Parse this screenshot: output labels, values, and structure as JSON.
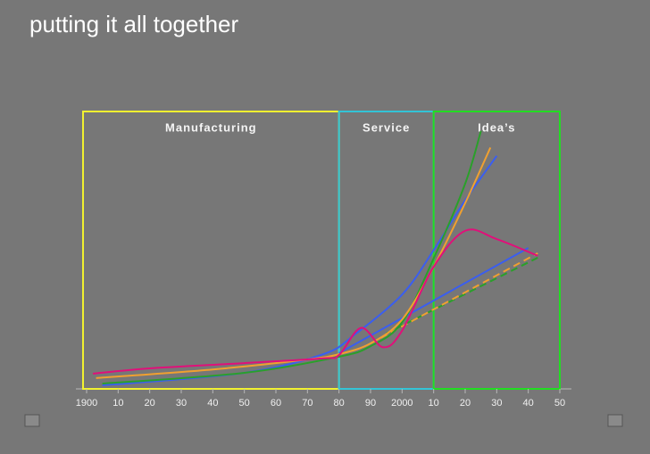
{
  "title": "putting it all together",
  "chart_data": {
    "type": "line",
    "xlim": [
      1900,
      2050
    ],
    "ylim": [
      0,
      100
    ],
    "xticks": [
      1900,
      {
        "value": 1910,
        "label": "10"
      },
      {
        "value": 1920,
        "label": "20"
      },
      {
        "value": 1930,
        "label": "30"
      },
      {
        "value": 1940,
        "label": "40"
      },
      {
        "value": 1950,
        "label": "50"
      },
      {
        "value": 1960,
        "label": "60"
      },
      {
        "value": 1970,
        "label": "70"
      },
      {
        "value": 1980,
        "label": "80"
      },
      {
        "value": 1990,
        "label": "90"
      },
      2000,
      {
        "value": 2010,
        "label": "10"
      },
      {
        "value": 2020,
        "label": "20"
      },
      {
        "value": 2030,
        "label": "30"
      },
      {
        "value": 2040,
        "label": "40"
      },
      {
        "value": 2050,
        "label": "50"
      }
    ],
    "regions": [
      {
        "label": "Manufacturing",
        "start": 1900,
        "end": 1980,
        "color": "#f2f230"
      },
      {
        "label": "Service",
        "start": 1980,
        "end": 2010,
        "color": "#33c4d6"
      },
      {
        "label": "Idea’s",
        "start": 2010,
        "end": 2050,
        "color": "#22dd22"
      }
    ],
    "series": [
      {
        "color": "#3a5ef0",
        "dash": false,
        "x": [
          1905,
          1950,
          1975,
          1985,
          2000,
          2010,
          2020,
          2030
        ],
        "values": [
          1.3,
          5.8,
          12.5,
          19.6,
          34,
          50,
          68,
          84
        ]
      },
      {
        "color": "#3a5ef0",
        "dash": false,
        "x": [
          1980,
          2040
        ],
        "values": [
          12.9,
          50.8
        ]
      },
      {
        "color": "#2aa02a",
        "dash": true,
        "x": [
          1995,
          2043
        ],
        "values": [
          20,
          47.3
        ]
      },
      {
        "color": "#f0a030",
        "dash": true,
        "x": [
          1990,
          2043
        ],
        "values": [
          16.4,
          48.9
        ]
      },
      {
        "color": "#2aa02a",
        "dash": false,
        "x": [
          1905,
          1950,
          1980,
          1990,
          2000,
          2010,
          2020,
          2025
        ],
        "values": [
          1.9,
          5.8,
          11.6,
          15.4,
          24,
          47,
          74,
          93
        ]
      },
      {
        "color": "#f0a030",
        "dash": false,
        "x": [
          1903,
          1940,
          1970,
          1980,
          1990,
          2000,
          2010,
          2020,
          2028
        ],
        "values": [
          3.9,
          7,
          10.6,
          12.5,
          16.4,
          25,
          44,
          67,
          87
        ]
      },
      {
        "color": "#e0107a",
        "dash": false,
        "x": [
          1902,
          1920,
          1950,
          1975,
          1980,
          1987,
          1994,
          2000,
          2010,
          2020,
          2030,
          2043
        ],
        "values": [
          5.5,
          7.4,
          9.3,
          11,
          12.2,
          22,
          15,
          21,
          44,
          57,
          54,
          48
        ]
      }
    ]
  }
}
